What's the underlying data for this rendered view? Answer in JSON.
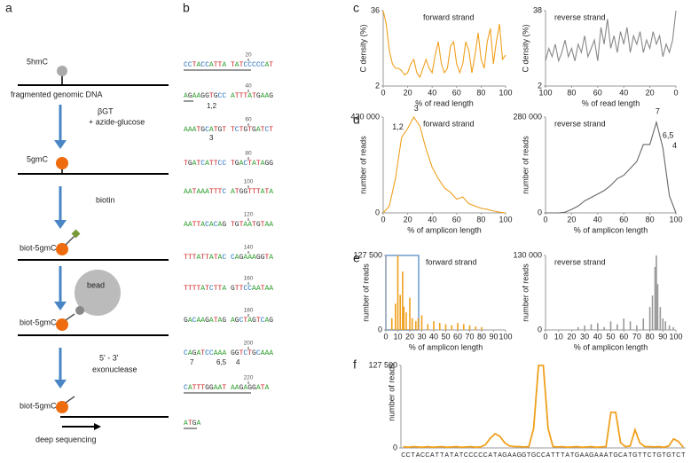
{
  "panel_labels": [
    "a",
    "b",
    "c",
    "d",
    "e",
    "f"
  ],
  "diagram": {
    "labels": [
      "5hmC",
      "fragmented genomic DNA",
      "βGT",
      "+ azide-glucose",
      "5gmC",
      "biotin",
      "biot-5gmC",
      "bead",
      "biot-5gmC",
      "5' - 3'",
      "exonuclease",
      "biot-5gmC",
      "deep sequencing"
    ]
  },
  "sequence": {
    "lines": [
      {
        "text": "CCTACCATTA TATCCCCCAT",
        "position": 20
      },
      {
        "text": "AGAAGGTGCC ATTTATGAAG",
        "position": 40
      },
      {
        "text": "AAATGCATGT TCTGTGATCT",
        "position": 60
      },
      {
        "text": "TGATCATTCC TGACTATAGG",
        "position": 80
      },
      {
        "text": "AATAAATTTC ATGGTTTATA",
        "position": 100
      },
      {
        "text": "AATTACACAG TGTAATGTAA",
        "position": 120
      },
      {
        "text": "TTTATTATAC CAGAAAGGTA",
        "position": 140
      },
      {
        "text": "TTTTATCTTA GTTCCAATAA",
        "position": 160
      },
      {
        "text": "GACAAGATAG AGCTAGTCAG",
        "position": 180
      },
      {
        "text": "CAGATCCAAA GGTCTGCAAA",
        "position": 200
      },
      {
        "text": "CATTTGGAAT AAGAGGATA",
        "position": 220
      },
      {
        "text": "ATGA"
      }
    ],
    "annotations": [
      "1,2",
      "3",
      "7",
      "6,5",
      "4"
    ]
  },
  "chart_data": [
    {
      "type": "line",
      "title": "forward strand",
      "y_label": "C density (%)",
      "x_label": "% of read length",
      "color": "#f0a01e",
      "x": [
        0,
        2.5,
        5,
        7.5,
        10,
        12.5,
        15,
        17.5,
        20,
        22.5,
        25,
        27.5,
        30,
        32.5,
        35,
        37.5,
        40,
        42.5,
        45,
        47.5,
        50,
        52.5,
        55,
        57.5,
        60,
        62.5,
        65,
        67.5,
        70,
        72.5,
        75,
        77.5,
        80,
        82.5,
        85,
        87.5,
        90,
        92.5,
        95,
        97.5,
        100
      ],
      "values": [
        36,
        30,
        18,
        12,
        10,
        10,
        9,
        7,
        8,
        12,
        14,
        8,
        6,
        10,
        14,
        10,
        8,
        16,
        22,
        12,
        8,
        10,
        20,
        22,
        12,
        8,
        12,
        22,
        18,
        8,
        16,
        26,
        14,
        10,
        22,
        28,
        12,
        22,
        30,
        14,
        16
      ],
      "xlim": [
        0,
        100
      ],
      "xticks": [
        0,
        20,
        40,
        60,
        80,
        100
      ],
      "ylim": [
        2,
        36
      ],
      "yticks": [
        2,
        36
      ]
    },
    {
      "type": "line",
      "title": "reverse strand",
      "y_label": "C density (%)",
      "x_label": "% of read length",
      "color": "#888888",
      "x": [
        100,
        97.5,
        95,
        92.5,
        90,
        87.5,
        85,
        82.5,
        80,
        77.5,
        75,
        72.5,
        70,
        67.5,
        65,
        62.5,
        60,
        57.5,
        55,
        52.5,
        50,
        47.5,
        45,
        42.5,
        40,
        37.5,
        35,
        32.5,
        30,
        27.5,
        25,
        22.5,
        20,
        17.5,
        15,
        12.5,
        10,
        7.5,
        5,
        2.5,
        0
      ],
      "values": [
        14,
        20,
        16,
        22,
        14,
        18,
        24,
        16,
        20,
        14,
        22,
        18,
        26,
        16,
        20,
        24,
        14,
        30,
        22,
        34,
        20,
        26,
        18,
        28,
        22,
        30,
        18,
        26,
        22,
        28,
        18,
        24,
        20,
        28,
        22,
        26,
        16,
        22,
        18,
        24,
        38
      ],
      "xlim": [
        100,
        0
      ],
      "xticks": [
        100,
        80,
        60,
        40,
        20,
        0
      ],
      "ylim": [
        2,
        38
      ],
      "yticks": [
        2,
        38
      ]
    },
    {
      "type": "line",
      "title": "forward strand",
      "y_label": "number of reads",
      "x_label": "% of amplicon length",
      "color": "#f0a01e",
      "x": [
        0,
        5,
        10,
        15,
        20,
        25,
        30,
        35,
        40,
        45,
        50,
        55,
        60,
        65,
        70,
        75,
        80,
        85,
        90,
        95,
        100
      ],
      "values": [
        0,
        30000,
        150000,
        330000,
        370000,
        420000,
        380000,
        280000,
        200000,
        150000,
        110000,
        90000,
        60000,
        70000,
        40000,
        30000,
        20000,
        15000,
        8000,
        3000,
        0
      ],
      "xlim": [
        0,
        100
      ],
      "xticks": [
        0,
        20,
        40,
        60,
        80,
        100
      ],
      "ylim": [
        0,
        420000
      ],
      "yticks": [
        0,
        {
          "value": 420000,
          "label": "420 000"
        }
      ],
      "annotations": [
        {
          "text": "1,2",
          "x": 12,
          "y": 360000
        },
        {
          "text": "3",
          "x": 27,
          "y": 440000
        }
      ]
    },
    {
      "type": "line",
      "title": "reverse strand",
      "y_label": "number of reads",
      "x_label": "% of amplicon length",
      "color": "#666666",
      "x": [
        0,
        5,
        10,
        15,
        20,
        25,
        30,
        35,
        40,
        45,
        50,
        55,
        60,
        65,
        70,
        75,
        80,
        85,
        90,
        95,
        100
      ],
      "values": [
        0,
        0,
        0,
        2000,
        10000,
        20000,
        35000,
        45000,
        55000,
        65000,
        80000,
        100000,
        110000,
        130000,
        150000,
        200000,
        200000,
        265000,
        190000,
        50000,
        0
      ],
      "xlim": [
        0,
        100
      ],
      "xticks": [
        0,
        20,
        40,
        60,
        80,
        100
      ],
      "ylim": [
        0,
        280000
      ],
      "yticks": [
        0,
        {
          "value": 280000,
          "label": "280 000"
        }
      ],
      "annotations": [
        {
          "text": "7",
          "x": 86,
          "y": 285000
        },
        {
          "text": "6,5",
          "x": 94,
          "y": 215000
        },
        {
          "text": "4",
          "x": 99,
          "y": 185000
        }
      ]
    },
    {
      "type": "spike",
      "title": "forward strand",
      "y_label": "number of reads",
      "x_label": "% of amplicon length",
      "color": "#f0a01e",
      "x": [
        5,
        8,
        10,
        12,
        14,
        15,
        17,
        20,
        22,
        25,
        27,
        30,
        35,
        40,
        45,
        50,
        55,
        60,
        65,
        70,
        75,
        80
      ],
      "values": [
        20000,
        45000,
        127500,
        60000,
        100000,
        40000,
        30000,
        55000,
        20000,
        15000,
        20000,
        25000,
        10000,
        15000,
        12000,
        10000,
        8000,
        12000,
        10000,
        8000,
        6000,
        5000
      ],
      "xlim": [
        0,
        100
      ],
      "xticks": [
        0,
        10,
        20,
        30,
        40,
        50,
        60,
        70,
        80,
        90,
        100
      ],
      "ylim": [
        0,
        127500
      ],
      "yticks": [
        0,
        {
          "value": 127500,
          "label": "127 500"
        }
      ]
    },
    {
      "type": "spike",
      "title": "reverse strand",
      "y_label": "number of reads",
      "x_label": "% of amplicon length",
      "color": "#999999",
      "x": [
        25,
        30,
        35,
        40,
        45,
        50,
        55,
        60,
        65,
        70,
        75,
        80,
        82,
        84,
        85,
        86,
        88,
        90,
        92,
        95,
        98
      ],
      "values": [
        5000,
        8000,
        10000,
        12000,
        5000,
        15000,
        10000,
        20000,
        15000,
        8000,
        20000,
        40000,
        60000,
        110000,
        130000,
        80000,
        40000,
        20000,
        15000,
        8000,
        5000
      ],
      "xlim": [
        0,
        100
      ],
      "xticks": [
        0,
        10,
        20,
        30,
        40,
        50,
        60,
        70,
        80,
        90,
        100
      ],
      "ylim": [
        0,
        130000
      ],
      "yticks": [
        0,
        {
          "value": 130000,
          "label": "130 000"
        }
      ]
    },
    {
      "type": "category-line",
      "y_label": "number of reads",
      "color": "#f0a01e",
      "categories": [
        "C",
        "C",
        "T",
        "A",
        "C",
        "C",
        "A",
        "T",
        "T",
        "A",
        "T",
        "A",
        "T",
        "C",
        "C",
        "C",
        "C",
        "C",
        "A",
        "T",
        "A",
        "G",
        "A",
        "A",
        "G",
        "G",
        "T",
        "G",
        "C",
        "C",
        "A",
        "T",
        "T",
        "T",
        "A",
        "T",
        "G",
        "A",
        "A",
        "G",
        "A",
        "A",
        "A",
        "T",
        "G",
        "C",
        "A",
        "T",
        "G",
        "T",
        "T",
        "C",
        "T",
        "G",
        "T",
        "G",
        "T",
        "C",
        "T"
      ],
      "values": [
        2000,
        1000,
        2000,
        1500,
        1000,
        2000,
        1000,
        1500,
        2000,
        1000,
        1500,
        2000,
        1000,
        1500,
        2000,
        1000,
        1500,
        5000,
        15000,
        22000,
        18000,
        8000,
        3000,
        2000,
        2000,
        1500,
        2000,
        30000,
        127500,
        127500,
        30000,
        2000,
        1500,
        2000,
        1000,
        1500,
        2000,
        1000,
        1500,
        2000,
        1000,
        1500,
        2000,
        55000,
        55000,
        8000,
        2000,
        3000,
        28000,
        8000,
        2000,
        2000,
        1500,
        2000,
        1000,
        3000,
        14000,
        10000,
        1000
      ],
      "ylim": [
        0,
        127500
      ],
      "yticks": [
        0,
        {
          "value": 127500,
          "label": "127 500"
        }
      ]
    }
  ]
}
